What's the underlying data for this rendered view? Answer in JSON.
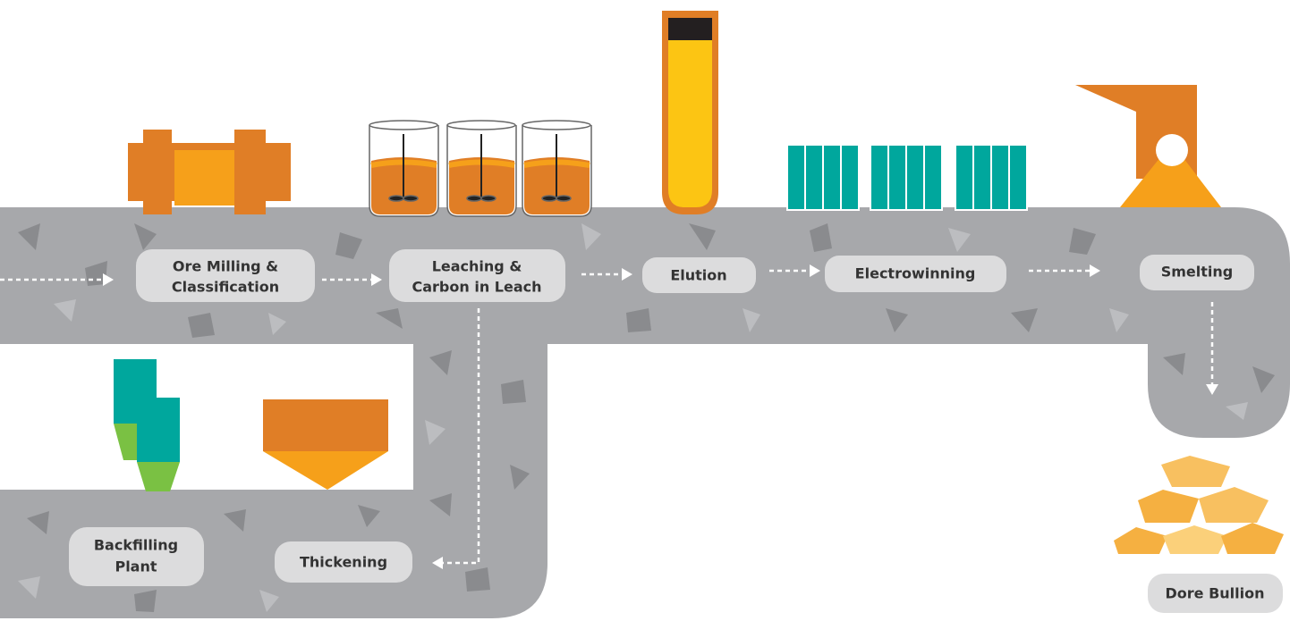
{
  "nodes": [
    {
      "lines": [
        "Ore Milling &",
        "Classification"
      ]
    },
    {
      "lines": [
        "Leaching &",
        "Carbon in Leach"
      ]
    },
    {
      "lines": [
        "Elution"
      ]
    },
    {
      "lines": [
        "Electrowinning"
      ]
    },
    {
      "lines": [
        "Smelting"
      ]
    },
    {
      "lines": [
        "Thickening"
      ]
    },
    {
      "lines": [
        "Backfilling",
        "Plant"
      ]
    },
    {
      "lines": [
        "Dore Bullion"
      ]
    }
  ]
}
